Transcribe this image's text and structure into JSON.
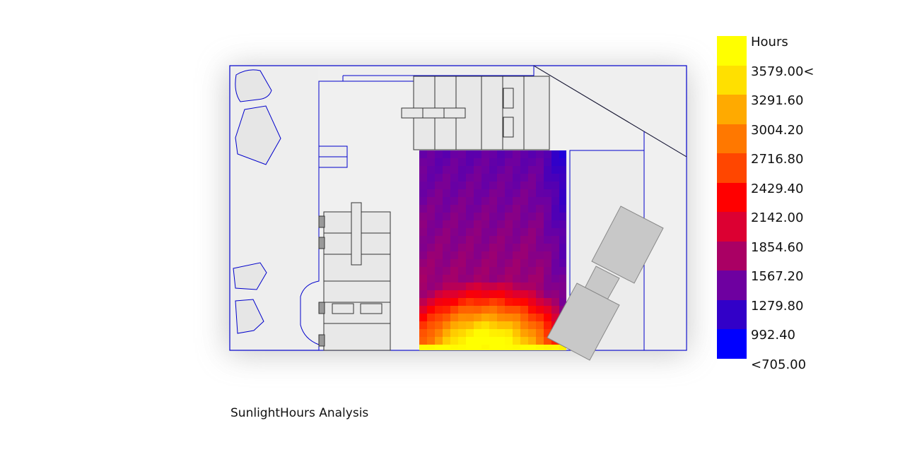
{
  "caption": "SunlightHours Analysis",
  "legend": {
    "title": "Hours",
    "labels": [
      "3579.00<",
      "3291.60",
      "3004.20",
      "2716.80",
      "2429.40",
      "2142.00",
      "1854.60",
      "1567.20",
      "1279.80",
      "992.40",
      "<705.00"
    ],
    "colors": [
      "#ffff00",
      "#ffe000",
      "#ffaa00",
      "#ff7800",
      "#ff4600",
      "#ff0000",
      "#dc0032",
      "#aa0064",
      "#6e00a0",
      "#3200c8",
      "#0000ff"
    ]
  },
  "colors": {
    "outline": "#0000cc",
    "building": "#e8e8e8",
    "building_stroke": "#333333",
    "site": "#ececec"
  }
}
